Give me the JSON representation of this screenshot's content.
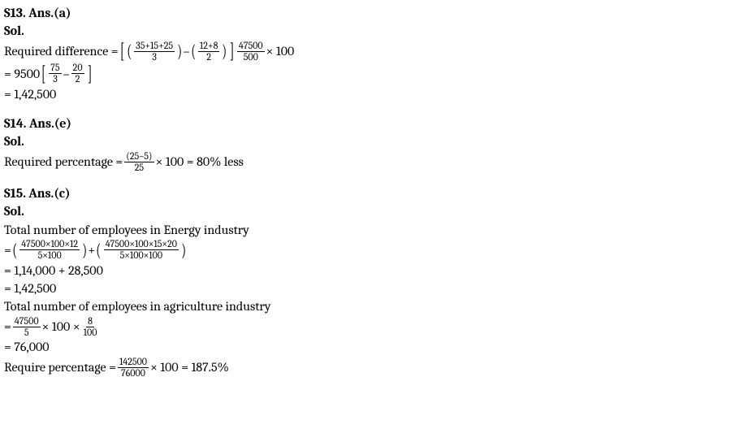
{
  "s13": {
    "header": "S13. Ans.(a)",
    "sol": "Sol.",
    "lead": "Required difference = ",
    "f1n": "35+15+25",
    "f1d": "3",
    "minus": " – ",
    "f2n": "12+8",
    "f2d": "2",
    "f3n": "47500",
    "f3d": "500",
    "times100": " × 100",
    "line2a": "= 9500 ",
    "f4n": "75",
    "f4d": "3",
    "dash": " – ",
    "f5n": "20",
    "f5d": "2",
    "line3": "=  1,42,500"
  },
  "s14": {
    "header": "S14. Ans.(e)",
    "sol": "Sol.",
    "lead": "Required percentage = ",
    "f1n": "(25–5)",
    "f1d": "25",
    "tail": " × 100 = 80% less"
  },
  "s15": {
    "header": "S15. Ans.(c)",
    "sol": "Sol.",
    "l1": "Total number of employees in Energy industry",
    "eq": "= ",
    "f1n": "47500×100×12",
    "f1d": "5×100",
    "plus": " + ",
    "f2n": "47500×100×15×20",
    "f2d": "5×100×100",
    "l3": "= 1,14,000 + 28,500",
    "l4": "= 1,42,500",
    "l5": "Total number of employees in agriculture industry",
    "eq2": "= ",
    "f3n": "47500",
    "f3d": "5",
    "mid": " × 100 × ",
    "f4n": "8",
    "f4d": "100",
    "l7": "= 76,000",
    "lead": "Require percentage = ",
    "f5n": "142500",
    "f5d": "76000",
    "tail": " × 100 = 187.5%"
  }
}
